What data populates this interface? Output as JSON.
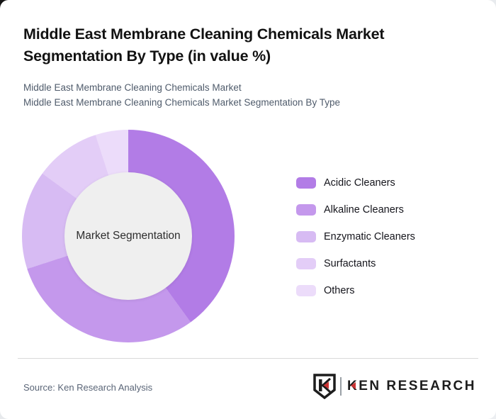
{
  "header": {
    "title": "Middle East Membrane Cleaning Chemicals Market Segmentation By Type (in value %)",
    "subtitle_line1": "Middle East Membrane Cleaning Chemicals Market",
    "subtitle_line2": "Middle East Membrane Cleaning Chemicals Market Segmentation By Type"
  },
  "chart_data": {
    "type": "pie",
    "subtype": "donut",
    "title": "Middle East Membrane Cleaning Chemicals Market Segmentation By Type (in value %)",
    "center_label": "Market Segmentation",
    "categories": [
      "Acidic Cleaners",
      "Alkaline Cleaners",
      "Enzymatic Cleaners",
      "Surfactants",
      "Others"
    ],
    "values": [
      40,
      30,
      15,
      10,
      5
    ],
    "unit": "value %",
    "colors": [
      "#b27ce6",
      "#c498ec",
      "#d7bbf3",
      "#e3cdf7",
      "#ecdcfa"
    ],
    "start_angle_deg": 0,
    "direction": "clockwise",
    "inner_radius_ratio": 0.6,
    "center_fill": "#efefef",
    "legend_position": "right"
  },
  "footer": {
    "source_label": "Source: Ken Research Analysis",
    "logo_text_k": "K",
    "logo_text_rest": "EN RESEARCH"
  },
  "colors": {
    "card_background": "#ffffff",
    "title_text": "#121212",
    "subtitle_text": "#4f5b6b",
    "legend_text": "#15151c",
    "divider": "#d9d9d9",
    "source_text": "#5a6577",
    "logo_dark": "#1d1d1d",
    "logo_red": "#cc3333"
  }
}
